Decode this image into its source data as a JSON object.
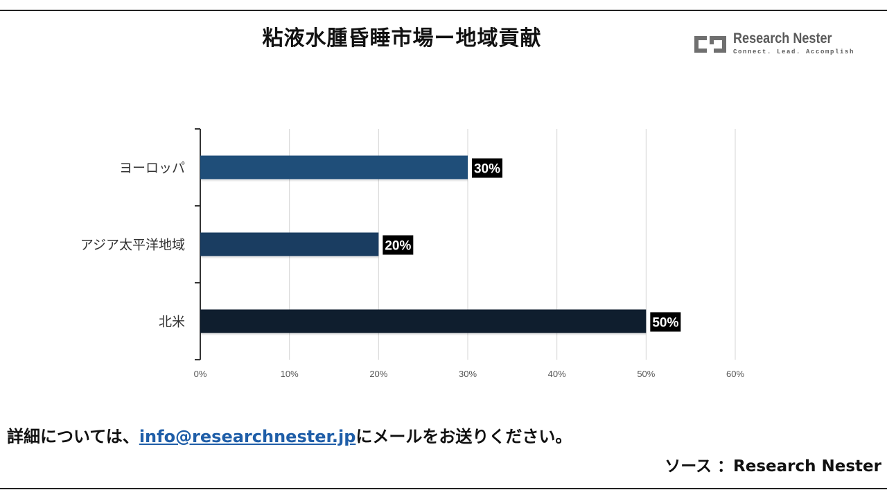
{
  "chart_data": {
    "type": "bar",
    "orientation": "horizontal",
    "title": "粘液水腫昏睡市場ー地域貢献",
    "categories": [
      "ヨーロッパ",
      "アジア太平洋地域",
      "北米"
    ],
    "values": [
      30,
      20,
      50
    ],
    "value_labels": [
      "30%",
      "20%",
      "50%"
    ],
    "bar_colors": [
      "#1f4e79",
      "#1a3d61",
      "#0f1e2e"
    ],
    "xlim": [
      0,
      60
    ],
    "x_ticks": [
      0,
      10,
      20,
      30,
      40,
      50,
      60
    ],
    "x_tick_labels": [
      "0%",
      "10%",
      "20%",
      "30%",
      "40%",
      "50%",
      "60%"
    ],
    "grid": "vertical",
    "legend": "none",
    "xlabel": "",
    "ylabel": ""
  },
  "brand": {
    "name": "Research Nester",
    "tagline": "Connect. Lead. Accomplish"
  },
  "footer": {
    "contact_prefix": "詳細については、",
    "contact_email": "info@researchnester.jp",
    "contact_suffix": "にメールをお送りください。",
    "source": "ソース ：Research Nester"
  },
  "colors": {
    "accent": "#1f4e79",
    "link": "#1f5ea8",
    "label_box": "#000000"
  }
}
